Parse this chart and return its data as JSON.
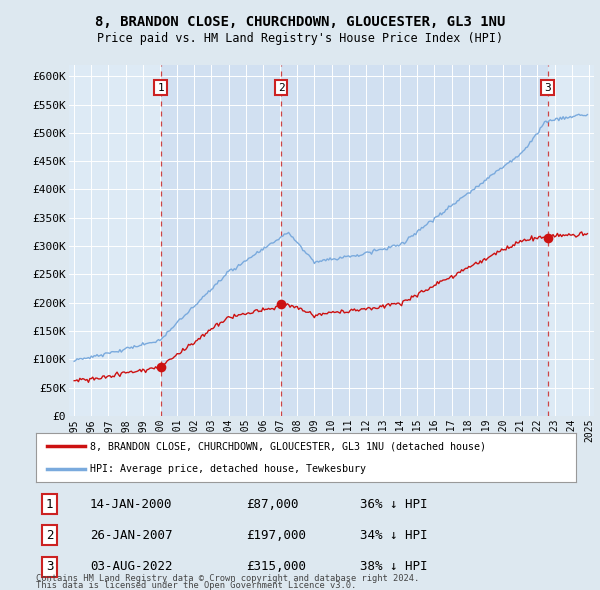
{
  "title": "8, BRANDON CLOSE, CHURCHDOWN, GLOUCESTER, GL3 1NU",
  "subtitle": "Price paid vs. HM Land Registry's House Price Index (HPI)",
  "legend_line1": "8, BRANDON CLOSE, CHURCHDOWN, GLOUCESTER, GL3 1NU (detached house)",
  "legend_line2": "HPI: Average price, detached house, Tewkesbury",
  "footnote1": "Contains HM Land Registry data © Crown copyright and database right 2024.",
  "footnote2": "This data is licensed under the Open Government Licence v3.0.",
  "sale_markers": [
    {
      "num": 1,
      "date": "14-JAN-2000",
      "price": "£87,000",
      "pct": "36% ↓ HPI",
      "x_year": 2000.04
    },
    {
      "num": 2,
      "date": "26-JAN-2007",
      "price": "£197,000",
      "pct": "34% ↓ HPI",
      "x_year": 2007.07
    },
    {
      "num": 3,
      "date": "03-AUG-2022",
      "price": "£315,000",
      "pct": "38% ↓ HPI",
      "x_year": 2022.59
    }
  ],
  "hpi_color": "#7aaadd",
  "price_color": "#cc1111",
  "dashed_color": "#cc3333",
  "marker_border_color": "#cc2222",
  "background_color": "#dde8f0",
  "plot_bg_color": "#ddeaf5",
  "shade_color": "#ccddf0",
  "ylim": [
    0,
    620000
  ],
  "yticks": [
    0,
    50000,
    100000,
    150000,
    200000,
    250000,
    300000,
    350000,
    400000,
    450000,
    500000,
    550000,
    600000
  ],
  "xlim_start": 1994.7,
  "xlim_end": 2025.3
}
